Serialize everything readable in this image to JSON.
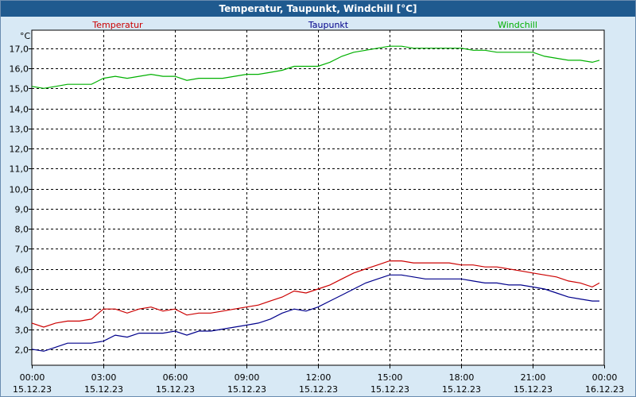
{
  "title": "Temperatur, Taupunkt, Windchill [°C]",
  "chart_data": {
    "type": "line",
    "ylabel": "°C",
    "ylim": [
      1.2,
      17.9
    ],
    "xlim_hours": [
      0,
      24
    ],
    "yticks": [
      2.0,
      3.0,
      4.0,
      5.0,
      6.0,
      7.0,
      8.0,
      9.0,
      10.0,
      11.0,
      12.0,
      13.0,
      14.0,
      15.0,
      16.0,
      17.0
    ],
    "ytick_labels": [
      "2,0",
      "3,0",
      "4,0",
      "5,0",
      "6,0",
      "7,0",
      "8,0",
      "9,0",
      "10,0",
      "11,0",
      "12,0",
      "13,0",
      "14,0",
      "15,0",
      "16,0",
      "17,0"
    ],
    "xticks": [
      {
        "time": "00:00",
        "date": "15.12.23"
      },
      {
        "time": "03:00",
        "date": "15.12.23"
      },
      {
        "time": "06:00",
        "date": "15.12.23"
      },
      {
        "time": "09:00",
        "date": "15.12.23"
      },
      {
        "time": "12:00",
        "date": "15.12.23"
      },
      {
        "time": "15:00",
        "date": "15.12.23"
      },
      {
        "time": "18:00",
        "date": "15.12.23"
      },
      {
        "time": "21:00",
        "date": "15.12.23"
      },
      {
        "time": "00:00",
        "date": "16.12.23"
      }
    ],
    "grid": true,
    "legend_position": "top",
    "x_hours": [
      0,
      0.5,
      1,
      1.5,
      2,
      2.5,
      3,
      3.5,
      4,
      4.5,
      5,
      5.5,
      6,
      6.5,
      7,
      7.5,
      8,
      8.5,
      9,
      9.5,
      10,
      10.5,
      11,
      11.5,
      12,
      12.5,
      13,
      13.5,
      14,
      14.5,
      15,
      15.5,
      16,
      16.5,
      17,
      17.5,
      18,
      18.5,
      19,
      19.5,
      20,
      20.5,
      21,
      21.5,
      22,
      22.5,
      23,
      23.5,
      23.8
    ],
    "series": [
      {
        "name": "Temperatur",
        "color": "#cc0000",
        "values": [
          3.3,
          3.1,
          3.3,
          3.4,
          3.4,
          3.5,
          4.0,
          4.0,
          3.8,
          4.0,
          4.1,
          3.9,
          4.0,
          3.7,
          3.8,
          3.8,
          3.9,
          4.0,
          4.1,
          4.2,
          4.4,
          4.6,
          4.9,
          4.8,
          5.0,
          5.2,
          5.5,
          5.8,
          6.0,
          6.2,
          6.4,
          6.4,
          6.3,
          6.3,
          6.3,
          6.3,
          6.2,
          6.2,
          6.1,
          6.1,
          6.0,
          5.9,
          5.8,
          5.7,
          5.6,
          5.4,
          5.3,
          5.1,
          5.3
        ]
      },
      {
        "name": "Taupunkt",
        "color": "#00008b",
        "values": [
          2.0,
          1.9,
          2.1,
          2.3,
          2.3,
          2.3,
          2.4,
          2.7,
          2.6,
          2.8,
          2.8,
          2.8,
          2.9,
          2.7,
          2.9,
          2.9,
          3.0,
          3.1,
          3.2,
          3.3,
          3.5,
          3.8,
          4.0,
          3.9,
          4.1,
          4.4,
          4.7,
          5.0,
          5.3,
          5.5,
          5.7,
          5.7,
          5.6,
          5.5,
          5.5,
          5.5,
          5.5,
          5.4,
          5.3,
          5.3,
          5.2,
          5.2,
          5.1,
          5.0,
          4.8,
          4.6,
          4.5,
          4.4,
          4.4
        ]
      },
      {
        "name": "Windchill",
        "color": "#00b000",
        "values": [
          15.1,
          15.0,
          15.1,
          15.2,
          15.2,
          15.2,
          15.5,
          15.6,
          15.5,
          15.6,
          15.7,
          15.6,
          15.6,
          15.4,
          15.5,
          15.5,
          15.5,
          15.6,
          15.7,
          15.7,
          15.8,
          15.9,
          16.1,
          16.1,
          16.1,
          16.3,
          16.6,
          16.8,
          16.9,
          17.0,
          17.1,
          17.1,
          17.0,
          17.0,
          17.0,
          17.0,
          17.0,
          16.9,
          16.9,
          16.8,
          16.8,
          16.8,
          16.8,
          16.6,
          16.5,
          16.4,
          16.4,
          16.3,
          16.4
        ]
      }
    ]
  }
}
